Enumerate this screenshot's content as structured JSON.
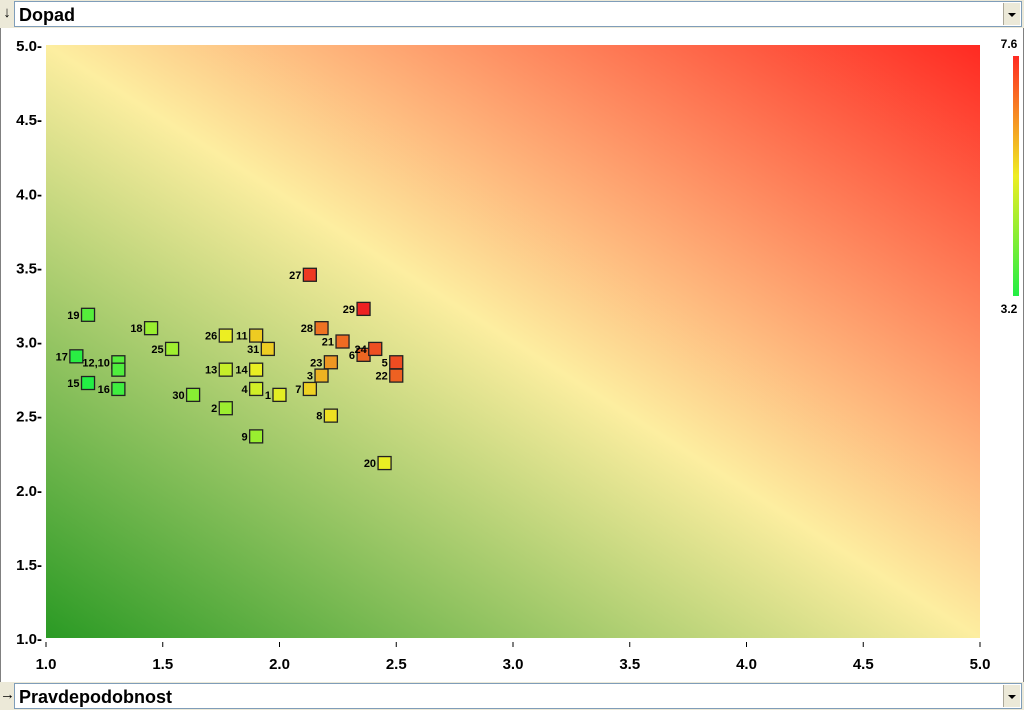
{
  "y_selector": {
    "value": "Dopad",
    "arrow": "↓"
  },
  "x_selector": {
    "value": "Pravdepodobnost",
    "arrow": "→"
  },
  "colors": {
    "green": "#2a9a24",
    "yellow": "#fdeea0",
    "red": "#ff2a22"
  },
  "colorbar": {
    "max_label": "7.6",
    "min_label": "3.2",
    "max": 7.6,
    "min": 3.2
  },
  "chart_data": {
    "type": "scatter",
    "xlim": [
      1.0,
      5.0
    ],
    "ylim": [
      1.0,
      5.0
    ],
    "x_ticks": [
      "1.0",
      "1.5",
      "2.0",
      "2.5",
      "3.0",
      "3.5",
      "4.0",
      "4.5",
      "5.0"
    ],
    "y_ticks": [
      "1.0-",
      "1.5-",
      "2.0-",
      "2.5-",
      "3.0-",
      "3.5-",
      "4.0-",
      "4.5-",
      "5.0-"
    ],
    "x_tick_values": [
      1.0,
      1.5,
      2.0,
      2.5,
      3.0,
      3.5,
      4.0,
      4.5,
      5.0
    ],
    "y_tick_values": [
      1.0,
      1.5,
      2.0,
      2.5,
      3.0,
      3.5,
      4.0,
      4.5,
      5.0
    ],
    "background": "gradient green (low) to yellow to red (high)",
    "points": [
      {
        "label": "1",
        "x": 2.0,
        "y": 2.64
      },
      {
        "label": "2",
        "x": 1.77,
        "y": 2.55
      },
      {
        "label": "3",
        "x": 2.18,
        "y": 2.77
      },
      {
        "label": "4",
        "x": 1.9,
        "y": 2.68
      },
      {
        "label": "5",
        "x": 2.5,
        "y": 2.86
      },
      {
        "label": "6",
        "x": 2.36,
        "y": 2.91
      },
      {
        "label": "7",
        "x": 2.13,
        "y": 2.68
      },
      {
        "label": "8",
        "x": 2.22,
        "y": 2.5
      },
      {
        "label": "9",
        "x": 1.9,
        "y": 2.36
      },
      {
        "label": "12,10",
        "x": 1.31,
        "y": 2.86
      },
      {
        "label": "11",
        "x": 1.9,
        "y": 3.04
      },
      {
        "label": "",
        "x": 1.31,
        "y": 2.81
      },
      {
        "label": "13",
        "x": 1.77,
        "y": 2.81
      },
      {
        "label": "14",
        "x": 1.9,
        "y": 2.81
      },
      {
        "label": "15",
        "x": 1.18,
        "y": 2.72
      },
      {
        "label": "16",
        "x": 1.31,
        "y": 2.68
      },
      {
        "label": "17",
        "x": 1.13,
        "y": 2.9
      },
      {
        "label": "18",
        "x": 1.45,
        "y": 3.09
      },
      {
        "label": "19",
        "x": 1.18,
        "y": 3.18
      },
      {
        "label": "20",
        "x": 2.45,
        "y": 2.18
      },
      {
        "label": "21",
        "x": 2.27,
        "y": 3.0
      },
      {
        "label": "22",
        "x": 2.5,
        "y": 2.77
      },
      {
        "label": "23",
        "x": 2.22,
        "y": 2.86
      },
      {
        "label": "24",
        "x": 2.41,
        "y": 2.95
      },
      {
        "label": "25",
        "x": 1.54,
        "y": 2.95
      },
      {
        "label": "26",
        "x": 1.77,
        "y": 3.04
      },
      {
        "label": "27",
        "x": 2.13,
        "y": 3.45
      },
      {
        "label": "28",
        "x": 2.18,
        "y": 3.09
      },
      {
        "label": "29",
        "x": 2.36,
        "y": 3.22
      },
      {
        "label": "30",
        "x": 1.63,
        "y": 2.64
      },
      {
        "label": "31",
        "x": 1.95,
        "y": 2.95
      }
    ]
  }
}
